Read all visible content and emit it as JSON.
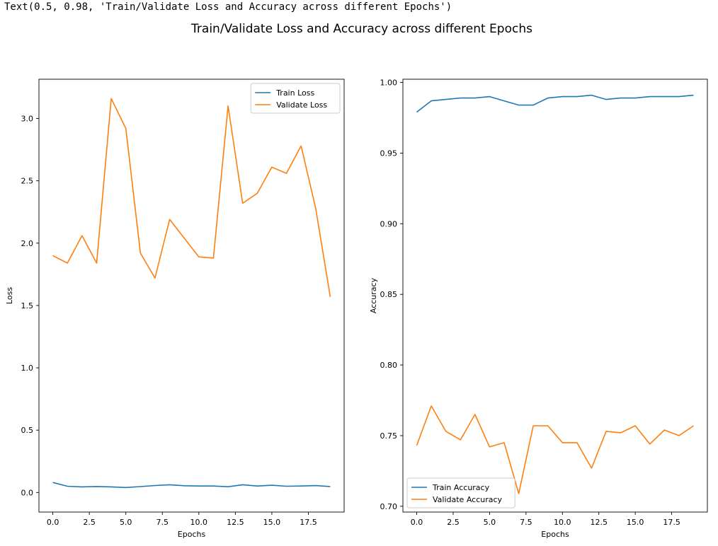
{
  "output_text": "Text(0.5, 0.98, 'Train/Validate Loss and Accuracy across different Epochs')",
  "figure_title": "Train/Validate Loss and Accuracy across different Epochs",
  "colors": {
    "train": "#1f77b4",
    "validate": "#ff7f0e",
    "axis": "#000000"
  },
  "chart_data": [
    {
      "type": "line",
      "xlabel": "Epochs",
      "ylabel": "Loss",
      "xlim": [
        -0.95,
        19.95
      ],
      "ylim": [
        -0.157,
        3.315
      ],
      "xticks": [
        0.0,
        2.5,
        5.0,
        7.5,
        10.0,
        12.5,
        15.0,
        17.5
      ],
      "xtick_labels": [
        "0.0",
        "2.5",
        "5.0",
        "7.5",
        "10.0",
        "12.5",
        "15.0",
        "17.5"
      ],
      "yticks": [
        0.0,
        0.5,
        1.0,
        1.5,
        2.0,
        2.5,
        3.0
      ],
      "ytick_labels": [
        "0.0",
        "0.5",
        "1.0",
        "1.5",
        "2.0",
        "2.5",
        "3.0"
      ],
      "legend_position": "upper right",
      "x": [
        0,
        1,
        2,
        3,
        4,
        5,
        6,
        7,
        8,
        9,
        10,
        11,
        12,
        13,
        14,
        15,
        16,
        17,
        18,
        19
      ],
      "series": [
        {
          "name": "Train Loss",
          "color": "#1f77b4",
          "values": [
            0.08,
            0.05,
            0.045,
            0.048,
            0.045,
            0.04,
            0.047,
            0.056,
            0.062,
            0.054,
            0.052,
            0.052,
            0.046,
            0.062,
            0.052,
            0.058,
            0.05,
            0.052,
            0.055,
            0.048
          ]
        },
        {
          "name": "Validate Loss",
          "color": "#ff7f0e",
          "values": [
            1.9,
            1.84,
            2.06,
            1.84,
            3.16,
            2.92,
            1.92,
            1.72,
            2.19,
            2.04,
            1.89,
            1.88,
            3.1,
            2.32,
            2.4,
            2.61,
            2.56,
            2.78,
            2.28,
            1.57
          ]
        }
      ]
    },
    {
      "type": "line",
      "xlabel": "Epochs",
      "ylabel": "Accuracy",
      "xlim": [
        -0.95,
        19.95
      ],
      "ylim": [
        0.6959,
        1.0023
      ],
      "xticks": [
        0.0,
        2.5,
        5.0,
        7.5,
        10.0,
        12.5,
        15.0,
        17.5
      ],
      "xtick_labels": [
        "0.0",
        "2.5",
        "5.0",
        "7.5",
        "10.0",
        "12.5",
        "15.0",
        "17.5"
      ],
      "yticks": [
        0.7,
        0.75,
        0.8,
        0.85,
        0.9,
        0.95,
        1.0
      ],
      "ytick_labels": [
        "0.70",
        "0.75",
        "0.80",
        "0.85",
        "0.90",
        "0.95",
        "1.00"
      ],
      "legend_position": "lower left",
      "x": [
        0,
        1,
        2,
        3,
        4,
        5,
        6,
        7,
        8,
        9,
        10,
        11,
        12,
        13,
        14,
        15,
        16,
        17,
        18,
        19
      ],
      "series": [
        {
          "name": "Train Accuracy",
          "color": "#1f77b4",
          "values": [
            0.979,
            0.987,
            0.988,
            0.989,
            0.989,
            0.99,
            0.987,
            0.984,
            0.984,
            0.989,
            0.99,
            0.99,
            0.991,
            0.988,
            0.989,
            0.989,
            0.99,
            0.99,
            0.99,
            0.991
          ]
        },
        {
          "name": "Validate Accuracy",
          "color": "#ff7f0e",
          "values": [
            0.743,
            0.771,
            0.753,
            0.747,
            0.765,
            0.742,
            0.745,
            0.709,
            0.757,
            0.757,
            0.745,
            0.745,
            0.727,
            0.753,
            0.752,
            0.757,
            0.744,
            0.754,
            0.75,
            0.757
          ]
        }
      ]
    }
  ]
}
